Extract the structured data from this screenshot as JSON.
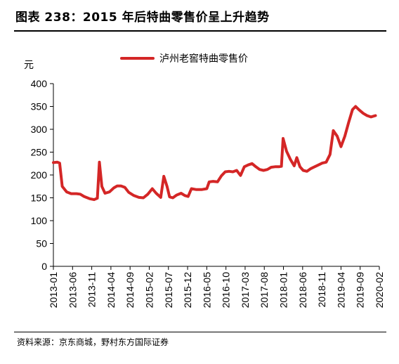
{
  "header": {
    "title": "图表 238：2015 年后特曲零售价呈上升趋势"
  },
  "footer": {
    "source": "资料来源：京东商城，野村东方国际证券"
  },
  "colors": {
    "series": "#d42626",
    "axis": "#000000"
  },
  "chart_data": {
    "type": "line",
    "title": "",
    "xlabel": "",
    "ylabel": "元",
    "ylim": [
      0,
      400
    ],
    "yticks": [
      0,
      50,
      100,
      150,
      200,
      250,
      300,
      350,
      400
    ],
    "xlim": [
      "2013-01",
      "2020-02"
    ],
    "xticks": [
      "2013-01",
      "2013-06",
      "2013-11",
      "2014-04",
      "2014-09",
      "2015-02",
      "2015-07",
      "2015-12",
      "2016-05",
      "2016-10",
      "2017-03",
      "2017-08",
      "2018-01",
      "2018-06",
      "2018-11",
      "2019-04",
      "2019-09",
      "2020-02"
    ],
    "grid": false,
    "legend": "top-center",
    "series": [
      {
        "name": "泸州老窖特曲零售价",
        "points": [
          [
            "2013-01-01",
            227
          ],
          [
            "2013-02-01",
            228
          ],
          [
            "2013-02-20",
            226
          ],
          [
            "2013-03-10",
            175
          ],
          [
            "2013-04-15",
            163
          ],
          [
            "2013-05-20",
            159
          ],
          [
            "2013-07-01",
            159
          ],
          [
            "2013-08-01",
            158
          ],
          [
            "2013-09-01",
            153
          ],
          [
            "2013-10-15",
            148
          ],
          [
            "2013-11-20",
            146
          ],
          [
            "2013-12-15",
            149
          ],
          [
            "2014-01-01",
            228
          ],
          [
            "2014-01-20",
            175
          ],
          [
            "2014-02-15",
            160
          ],
          [
            "2014-03-20",
            163
          ],
          [
            "2014-04-25",
            172
          ],
          [
            "2014-05-20",
            176
          ],
          [
            "2014-06-20",
            176
          ],
          [
            "2014-07-20",
            173
          ],
          [
            "2014-08-20",
            162
          ],
          [
            "2014-10-01",
            155
          ],
          [
            "2014-11-10",
            151
          ],
          [
            "2014-12-15",
            150
          ],
          [
            "2015-01-20",
            158
          ],
          [
            "2015-02-25",
            170
          ],
          [
            "2015-03-25",
            160
          ],
          [
            "2015-05-01",
            151
          ],
          [
            "2015-05-25",
            197
          ],
          [
            "2015-06-20",
            175
          ],
          [
            "2015-07-10",
            152
          ],
          [
            "2015-08-05",
            150
          ],
          [
            "2015-09-05",
            156
          ],
          [
            "2015-10-10",
            160
          ],
          [
            "2015-11-10",
            155
          ],
          [
            "2015-12-05",
            153
          ],
          [
            "2016-01-01",
            170
          ],
          [
            "2016-02-10",
            168
          ],
          [
            "2016-03-20",
            168
          ],
          [
            "2016-05-01",
            170
          ],
          [
            "2016-05-20",
            185
          ],
          [
            "2016-06-20",
            186
          ],
          [
            "2016-07-25",
            185
          ],
          [
            "2016-08-25",
            198
          ],
          [
            "2016-09-25",
            207
          ],
          [
            "2016-10-25",
            208
          ],
          [
            "2016-11-25",
            207
          ],
          [
            "2016-12-25",
            210
          ],
          [
            "2017-01-25",
            199
          ],
          [
            "2017-02-25",
            218
          ],
          [
            "2017-03-25",
            222
          ],
          [
            "2017-04-25",
            225
          ],
          [
            "2017-05-25",
            218
          ],
          [
            "2017-06-25",
            212
          ],
          [
            "2017-07-25",
            210
          ],
          [
            "2017-08-25",
            212
          ],
          [
            "2017-09-25",
            217
          ],
          [
            "2017-10-25",
            218
          ],
          [
            "2017-11-25",
            218
          ],
          [
            "2017-12-15",
            219
          ],
          [
            "2017-12-28",
            280
          ],
          [
            "2018-01-25",
            252
          ],
          [
            "2018-02-25",
            234
          ],
          [
            "2018-03-25",
            220
          ],
          [
            "2018-04-15",
            238
          ],
          [
            "2018-05-10",
            218
          ],
          [
            "2018-06-05",
            210
          ],
          [
            "2018-07-05",
            208
          ],
          [
            "2018-08-05",
            214
          ],
          [
            "2018-09-05",
            218
          ],
          [
            "2018-10-05",
            222
          ],
          [
            "2018-11-05",
            226
          ],
          [
            "2018-12-05",
            228
          ],
          [
            "2019-01-05",
            245
          ],
          [
            "2019-02-01",
            297
          ],
          [
            "2019-03-01",
            285
          ],
          [
            "2019-04-01",
            262
          ],
          [
            "2019-05-01",
            285
          ],
          [
            "2019-06-01",
            315
          ],
          [
            "2019-07-01",
            343
          ],
          [
            "2019-07-25",
            350
          ],
          [
            "2019-08-25",
            342
          ],
          [
            "2019-09-25",
            335
          ],
          [
            "2019-10-25",
            330
          ],
          [
            "2019-11-25",
            327
          ],
          [
            "2020-01-01",
            330
          ]
        ]
      }
    ]
  }
}
